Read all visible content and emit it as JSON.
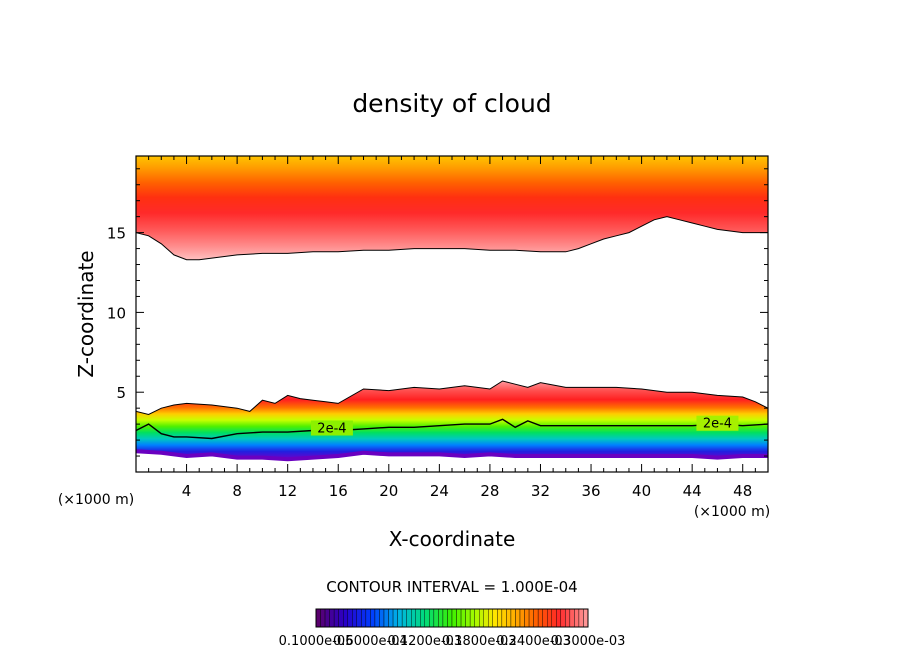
{
  "chart_data": {
    "type": "heatmap",
    "title": "density of cloud",
    "xlabel": "X-coordinate",
    "ylabel": "Z-coordinate",
    "x_unit_left": "(×1000 m)",
    "x_unit_right": "(×1000 m)",
    "xlim": [
      0,
      50
    ],
    "ylim": [
      0,
      19.8
    ],
    "x_ticks": [
      4,
      8,
      12,
      16,
      20,
      24,
      28,
      32,
      36,
      40,
      44,
      48
    ],
    "x_tick_labels": [
      "4",
      "8",
      "12",
      "16",
      "20",
      "24",
      "28",
      "32",
      "36",
      "40",
      "44",
      "48"
    ],
    "y_ticks": [
      5,
      10,
      15
    ],
    "y_tick_labels": [
      "5",
      "10",
      "15"
    ],
    "contour_interval_text": "CONTOUR INTERVAL = 1.000E-04",
    "contour_labels": [
      {
        "text": "2e-4",
        "x": 15.5,
        "z": 2.6
      },
      {
        "text": "2e-4",
        "x": 46.0,
        "z": 2.9
      }
    ],
    "colorbar_labels_text": [
      "0.1000e-05",
      "0.6000e-04",
      "0.1200e-03",
      "0.1800e-03",
      "0.2400e-03",
      "0.3000e-03"
    ],
    "colorbar_range": [
      1e-06,
      0.0003
    ],
    "upper_cloud_base": {
      "x": [
        0,
        1,
        2,
        3,
        4,
        5,
        6,
        8,
        10,
        12,
        14,
        16,
        18,
        20,
        22,
        24,
        26,
        28,
        30,
        32,
        34,
        35,
        36,
        37,
        38,
        39,
        40,
        41,
        42,
        43,
        44,
        45,
        46,
        47,
        48,
        49,
        50
      ],
      "z": [
        15.0,
        14.8,
        14.3,
        13.6,
        13.3,
        13.3,
        13.4,
        13.6,
        13.7,
        13.7,
        13.8,
        13.8,
        13.9,
        13.9,
        14.0,
        14.0,
        14.0,
        13.9,
        13.9,
        13.8,
        13.8,
        14.0,
        14.3,
        14.6,
        14.8,
        15.0,
        15.4,
        15.8,
        16.0,
        15.8,
        15.6,
        15.4,
        15.2,
        15.1,
        15.0,
        15.0,
        15.0
      ]
    },
    "lower_cloud_top": {
      "x": [
        0,
        1,
        2,
        3,
        4,
        6,
        8,
        9,
        10,
        11,
        12,
        13,
        14,
        15,
        16,
        18,
        20,
        22,
        24,
        26,
        28,
        29,
        30,
        31,
        32,
        34,
        36,
        38,
        40,
        42,
        44,
        46,
        48,
        49,
        50
      ],
      "z": [
        3.8,
        3.6,
        4.0,
        4.2,
        4.3,
        4.2,
        4.0,
        3.8,
        4.5,
        4.3,
        4.8,
        4.6,
        4.5,
        4.4,
        4.3,
        5.2,
        5.1,
        5.3,
        5.2,
        5.4,
        5.2,
        5.7,
        5.5,
        5.3,
        5.6,
        5.3,
        5.3,
        5.3,
        5.2,
        5.0,
        5.0,
        4.8,
        4.7,
        4.4,
        4.0
      ]
    },
    "contour_2e4": {
      "x": [
        0,
        1,
        2,
        3,
        4,
        6,
        8,
        10,
        12,
        14,
        16,
        18,
        20,
        22,
        24,
        26,
        28,
        29,
        30,
        31,
        32,
        34,
        36,
        38,
        40,
        42,
        44,
        46,
        48,
        50
      ],
      "z": [
        2.6,
        3.0,
        2.4,
        2.2,
        2.2,
        2.1,
        2.4,
        2.5,
        2.5,
        2.6,
        2.6,
        2.7,
        2.8,
        2.8,
        2.9,
        3.0,
        3.0,
        3.3,
        2.8,
        3.2,
        2.9,
        2.9,
        2.9,
        2.9,
        2.9,
        2.9,
        2.9,
        3.0,
        2.9,
        3.0
      ]
    },
    "lower_cloud_base": {
      "x": [
        0,
        2,
        4,
        6,
        8,
        10,
        12,
        14,
        16,
        18,
        20,
        22,
        24,
        26,
        28,
        30,
        32,
        34,
        36,
        38,
        40,
        42,
        44,
        46,
        48,
        50
      ],
      "z": [
        1.3,
        1.2,
        1.0,
        1.1,
        0.9,
        0.9,
        0.8,
        0.9,
        1.0,
        1.2,
        1.1,
        1.1,
        1.1,
        1.0,
        1.1,
        1.0,
        1.0,
        1.0,
        1.0,
        1.0,
        1.0,
        1.0,
        1.0,
        0.9,
        1.0,
        1.0
      ]
    }
  }
}
